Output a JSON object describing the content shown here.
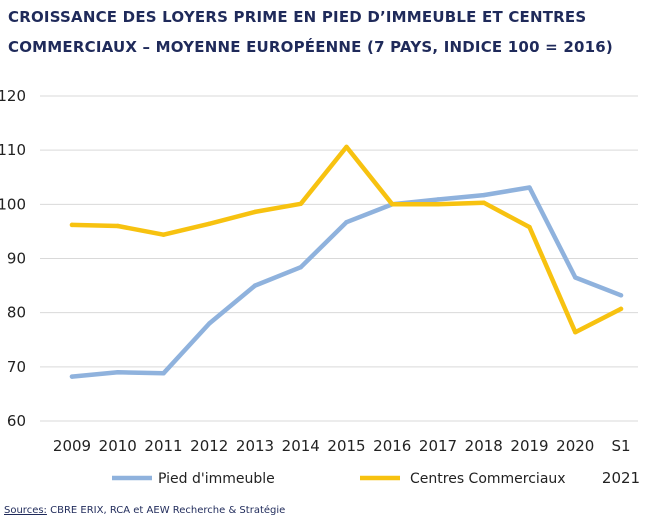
{
  "title_lines": [
    "CROISSANCE DES LOYERS PRIME EN PIED D’IMMEUBLE ET CENTRES",
    "COMMERCIAUX – MOYENNE EUROPÉENNE (7 PAYS, INDICE 100 = 2016)"
  ],
  "source": {
    "label": "Sources:",
    "text": " CBRE ERIX, RCA et AEW Recherche & Stratégie"
  },
  "chart_data": {
    "type": "line",
    "title": "CROISSANCE DES LOYERS PRIME EN PIED D’IMMEUBLE ET CENTRES COMMERCIAUX – MOYENNE EUROPÉENNE (7 PAYS, INDICE 100 = 2016)",
    "categories": [
      "2009",
      "2010",
      "2011",
      "2012",
      "2013",
      "2014",
      "2015",
      "2016",
      "2017",
      "2018",
      "2019",
      "2020",
      "S1"
    ],
    "category_sublabels": [
      "",
      "",
      "",
      "",
      "",
      "",
      "",
      "",
      "",
      "",
      "",
      "",
      "2021"
    ],
    "y_ticks": [
      60,
      70,
      80,
      90,
      100,
      110,
      120
    ],
    "ylim": [
      60,
      120
    ],
    "grid": true,
    "legend_position": "bottom",
    "series": [
      {
        "name": "Pied d'immeuble",
        "color": "#8fb2dd",
        "values": [
          68.2,
          69.0,
          68.8,
          78.0,
          85.0,
          88.4,
          96.7,
          100.0,
          100.9,
          101.7,
          103.1,
          86.5,
          83.2
        ]
      },
      {
        "name": "Centres Commerciaux",
        "color": "#f7c210",
        "values": [
          96.2,
          96.0,
          94.4,
          96.4,
          98.6,
          100.1,
          110.6,
          100.0,
          100.0,
          100.3,
          95.8,
          76.4,
          80.7
        ]
      }
    ]
  }
}
